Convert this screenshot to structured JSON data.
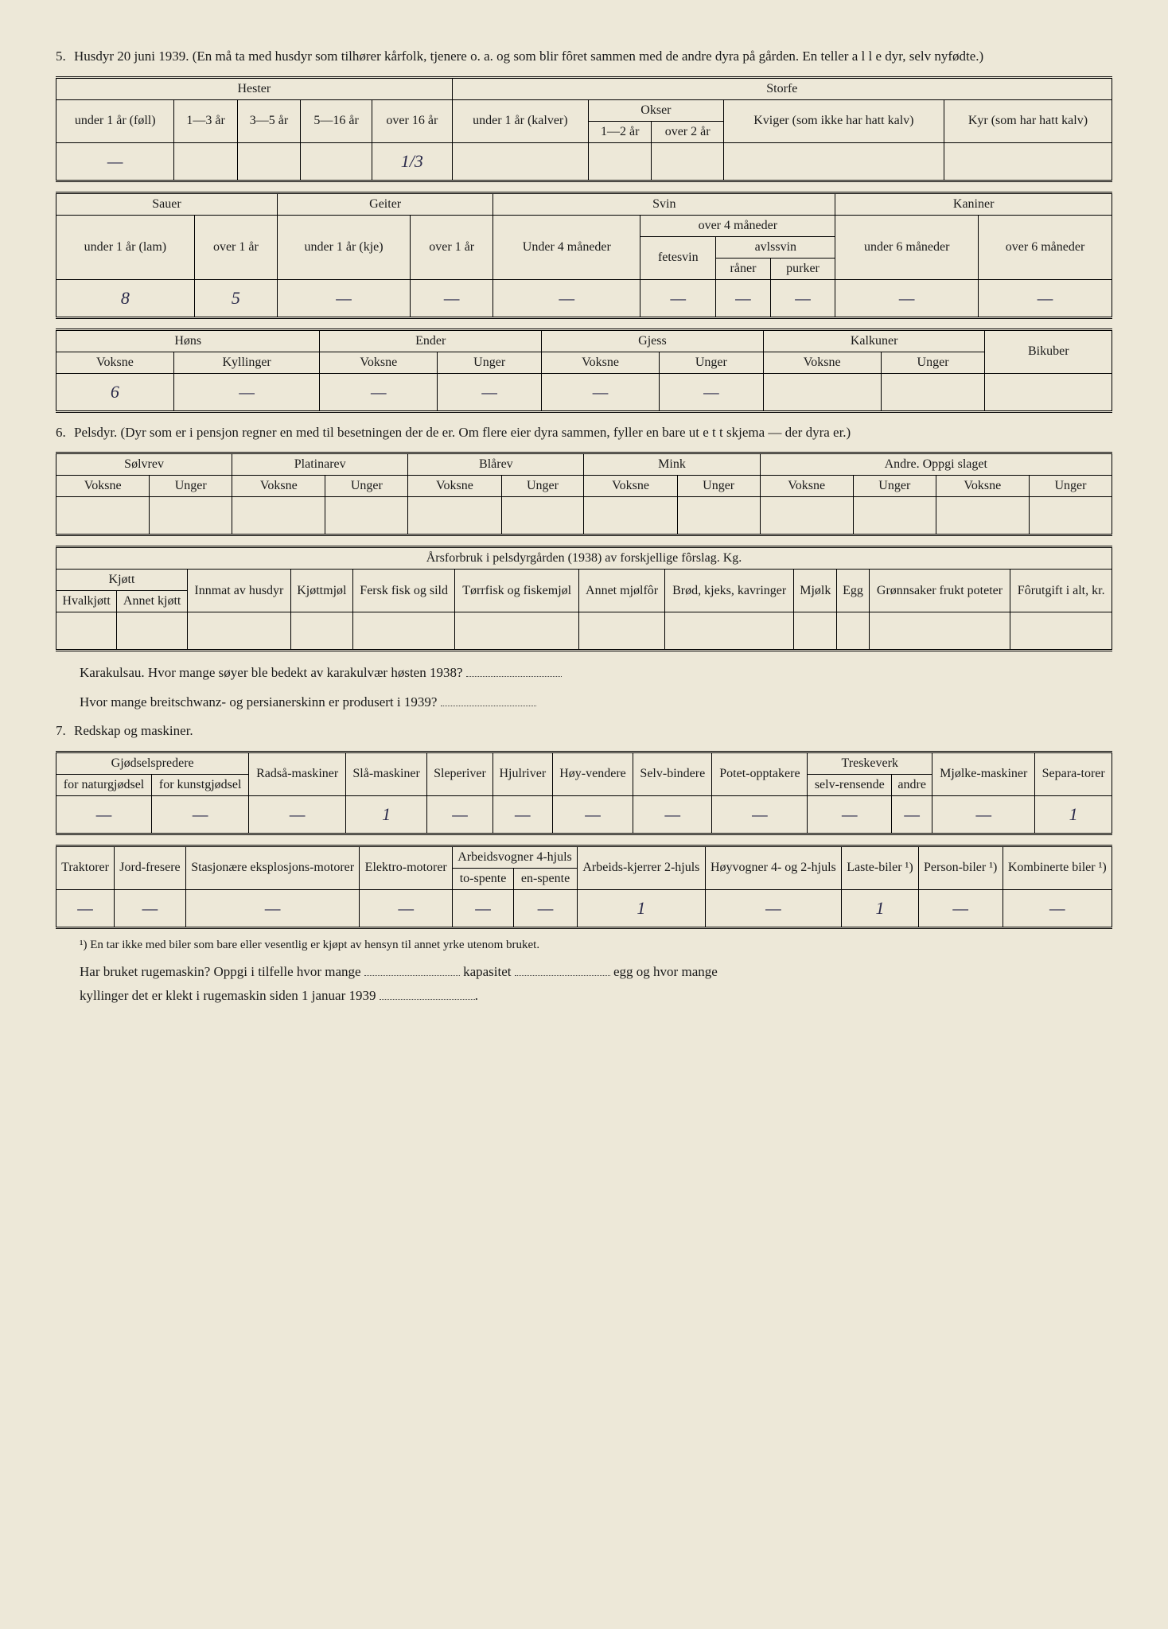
{
  "section5": {
    "num": "5.",
    "title": "Husdyr 20 juni 1939.  (En må ta med husdyr som tilhører kårfolk, tjenere o. a. og som blir fôret sammen med de andre dyra på gården.  En teller a l l e dyr, selv nyfødte.)"
  },
  "table1": {
    "group_hester": "Hester",
    "group_storfe": "Storfe",
    "h_under1": "under 1 år (føll)",
    "h_1_3": "1—3 år",
    "h_3_5": "3—5 år",
    "h_5_16": "5—16 år",
    "h_over16": "over 16 år",
    "s_under1": "under 1 år (kalver)",
    "s_okser": "Okser",
    "s_okser_1_2": "1—2 år",
    "s_okser_over2": "over 2 år",
    "s_kviger": "Kviger (som ikke har hatt kalv)",
    "s_kyr": "Kyr (som har hatt kalv)",
    "vals": [
      "—",
      "",
      "",
      "",
      "1/3",
      "",
      "",
      "",
      "",
      ""
    ]
  },
  "table2": {
    "group_sauer": "Sauer",
    "group_geiter": "Geiter",
    "group_svin": "Svin",
    "group_kaniner": "Kaniner",
    "sau_u1": "under 1 år (lam)",
    "sau_o1": "over 1 år",
    "gei_u1": "under 1 år (kje)",
    "gei_o1": "over 1 år",
    "sv_u4": "Under 4 måneder",
    "sv_o4": "over 4 måneder",
    "sv_fete": "fetesvin",
    "sv_avl": "avlssvin",
    "sv_raner": "råner",
    "sv_purker": "purker",
    "kan_u6": "under 6 måneder",
    "kan_o6": "over 6 måneder",
    "vals": [
      "8",
      "5",
      "—",
      "—",
      "—",
      "—",
      "—",
      "—",
      "—",
      "—"
    ]
  },
  "table3": {
    "group_hons": "Høns",
    "group_ender": "Ender",
    "group_gjess": "Gjess",
    "group_kalkuner": "Kalkuner",
    "bikuber": "Bikuber",
    "voksne": "Voksne",
    "kyllinger": "Kyllinger",
    "unger": "Unger",
    "vals": [
      "6",
      "—",
      "—",
      "—",
      "—",
      "—",
      "",
      "",
      ""
    ]
  },
  "section6": {
    "num": "6.",
    "title": "Pelsdyr.  (Dyr som er i pensjon regner en med til besetningen der de er.  Om flere eier dyra sammen, fyller en bare ut e t t skjema — der dyra er.)"
  },
  "table4": {
    "solvrev": "Sølvrev",
    "platinarev": "Platinarev",
    "blarev": "Blårev",
    "mink": "Mink",
    "andre": "Andre. Oppgi slaget",
    "voksne": "Voksne",
    "unger": "Unger"
  },
  "table5": {
    "title": "Årsforbruk i pelsdyrgården (1938) av forskjellige fôrslag. Kg.",
    "kjott": "Kjøtt",
    "hvalkjott": "Hvalkjøtt",
    "annetkjott": "Annet kjøtt",
    "innmat": "Innmat av husdyr",
    "kjottmjol": "Kjøttmjøl",
    "fersk": "Fersk fisk og sild",
    "torr": "Tørrfisk og fiskemjøl",
    "annetmjol": "Annet mjølfôr",
    "brod": "Brød, kjeks, kavringer",
    "mjolk": "Mjølk",
    "egg": "Egg",
    "gronn": "Grønnsaker frukt poteter",
    "forutgift": "Fôrutgift i alt, kr."
  },
  "karakul": {
    "q1": "Karakulsau.  Hvor mange søyer ble bedekt av karakulvær høsten 1938?",
    "q2": "Hvor mange breitschwanz- og persianerskinn er produsert i 1939?"
  },
  "section7": {
    "num": "7.",
    "title": "Redskap og maskiner."
  },
  "table6": {
    "gjodsel": "Gjødselspredere",
    "gjodsel_natur": "for naturgjødsel",
    "gjodsel_kunst": "for kunstgjødsel",
    "radsa": "Radså-maskiner",
    "sla": "Slå-maskiner",
    "sleperiver": "Sleperiver",
    "hjulriver": "Hjulriver",
    "hoyvendere": "Høy-vendere",
    "selvbindere": "Selv-bindere",
    "potet": "Potet-opptakere",
    "treskeverk": "Treskeverk",
    "treske_selv": "selv-rensende",
    "treske_andre": "andre",
    "mjolke": "Mjølke-maskiner",
    "separa": "Separa-torer",
    "vals": [
      "—",
      "—",
      "—",
      "1",
      "—",
      "—",
      "—",
      "—",
      "—",
      "—",
      "—",
      "—",
      "1"
    ]
  },
  "table7": {
    "traktorer": "Traktorer",
    "jordfresere": "Jord-fresere",
    "stasjon": "Stasjonære eksplosjons-motorer",
    "elektro": "Elektro-motorer",
    "arbeidsvogner": "Arbeidsvogner 4-hjuls",
    "tospente": "to-spente",
    "enspente": "en-spente",
    "arbeidskjerrer": "Arbeids-kjerrer 2-hjuls",
    "hoyvogner": "Høyvogner 4- og 2-hjuls",
    "lastebiler": "Laste-biler ¹)",
    "personbiler": "Person-biler ¹)",
    "kombinerte": "Kombinerte biler ¹)",
    "vals": [
      "—",
      "—",
      "—",
      "—",
      "—",
      "—",
      "1",
      "—",
      "1",
      "—",
      "—"
    ]
  },
  "footnote1": "¹) En tar ikke med biler som bare eller vesentlig er kjøpt av hensyn til annet yrke utenom bruket.",
  "ruge_q": {
    "part1": "Har bruket rugemaskin?  Oppgi i tilfelle hvor mange",
    "part2": "kapasitet",
    "part3": "egg og hvor mange",
    "part4": "kyllinger det er klekt i rugemaskin siden 1 januar 1939"
  }
}
